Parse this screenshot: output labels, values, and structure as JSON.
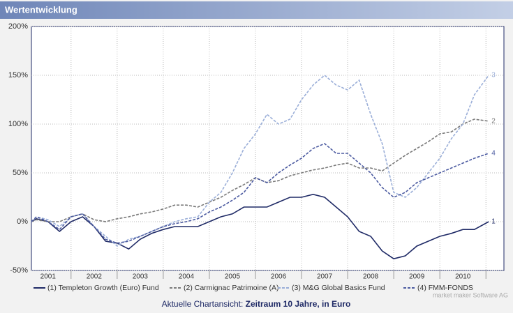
{
  "header": {
    "title": "Wertentwicklung"
  },
  "chart_data": {
    "type": "line",
    "x": [
      2001.14,
      2001.25,
      2001.5,
      2001.75,
      2002.0,
      2002.25,
      2002.5,
      2002.75,
      2003.0,
      2003.25,
      2003.5,
      2003.75,
      2004.0,
      2004.25,
      2004.5,
      2004.75,
      2005.0,
      2005.25,
      2005.5,
      2005.75,
      2006.0,
      2006.25,
      2006.5,
      2006.75,
      2007.0,
      2007.25,
      2007.5,
      2007.75,
      2008.0,
      2008.25,
      2008.5,
      2008.75,
      2009.0,
      2009.25,
      2009.5,
      2009.75,
      2010.0,
      2010.25,
      2010.5,
      2010.75,
      2011.06
    ],
    "series": [
      {
        "name": "(1) Templeton Growth (Euro) Fund",
        "end_label": "1",
        "color": "#1f2a66",
        "line_style": "solid",
        "values": [
          0,
          3,
          0,
          -10,
          0,
          5,
          -5,
          -20,
          -22,
          -28,
          -18,
          -12,
          -8,
          -5,
          -5,
          -5,
          0,
          5,
          8,
          15,
          15,
          15,
          20,
          25,
          25,
          28,
          25,
          15,
          5,
          -10,
          -15,
          -30,
          -38,
          -35,
          -25,
          -20,
          -15,
          -12,
          -8,
          -8,
          0
        ]
      },
      {
        "name": "(2) Carmignac Patrimoine (A)",
        "end_label": "2",
        "color": "#7a7a7a",
        "line_style": "dashed",
        "values": [
          0,
          2,
          0,
          0,
          5,
          8,
          2,
          0,
          3,
          5,
          8,
          10,
          13,
          17,
          17,
          15,
          20,
          25,
          32,
          38,
          45,
          40,
          42,
          47,
          50,
          53,
          55,
          58,
          60,
          55,
          55,
          52,
          60,
          68,
          75,
          82,
          90,
          92,
          100,
          105,
          103
        ]
      },
      {
        "name": "(3) M&G Global Basics Fund",
        "end_label": "3",
        "color": "#9aaed8",
        "line_style": "dashed",
        "values": [
          0,
          5,
          2,
          -5,
          5,
          8,
          -5,
          -15,
          -25,
          -18,
          -15,
          -10,
          -5,
          0,
          3,
          5,
          20,
          30,
          50,
          75,
          90,
          110,
          100,
          105,
          125,
          140,
          150,
          140,
          135,
          145,
          110,
          80,
          30,
          25,
          35,
          50,
          65,
          85,
          100,
          130,
          150
        ]
      },
      {
        "name": "(4) FMM-FONDS",
        "end_label": "4",
        "color": "#4b5aa0",
        "line_style": "dashed",
        "values": [
          0,
          5,
          0,
          -8,
          5,
          8,
          -5,
          -18,
          -22,
          -20,
          -15,
          -10,
          -5,
          -2,
          0,
          3,
          10,
          15,
          22,
          30,
          45,
          40,
          50,
          58,
          65,
          75,
          80,
          70,
          70,
          60,
          50,
          35,
          25,
          30,
          40,
          45,
          50,
          55,
          60,
          65,
          70
        ]
      }
    ],
    "xlim": [
      2001.14,
      2011.39
    ],
    "xticks": [
      2002,
      2003,
      2004,
      2005,
      2006,
      2007,
      2008,
      2009,
      2010,
      2011
    ],
    "year_labels": [
      2001,
      2002,
      2003,
      2004,
      2005,
      2006,
      2007,
      2008,
      2009,
      2010
    ],
    "ylim": [
      -50,
      200
    ],
    "yticks": [
      {
        "value": -50,
        "label": "-50%"
      },
      {
        "value": 0,
        "label": "0%"
      },
      {
        "value": 50,
        "label": "50%"
      },
      {
        "value": 100,
        "label": "100%"
      },
      {
        "value": 150,
        "label": "150%"
      },
      {
        "value": 200,
        "label": "200%"
      }
    ],
    "grid": true
  },
  "footer": {
    "prefix": "Aktuelle Chartansicht:",
    "period": "Zeitraum 10 Jahre, in Euro",
    "credit": "market maker Software AG"
  }
}
